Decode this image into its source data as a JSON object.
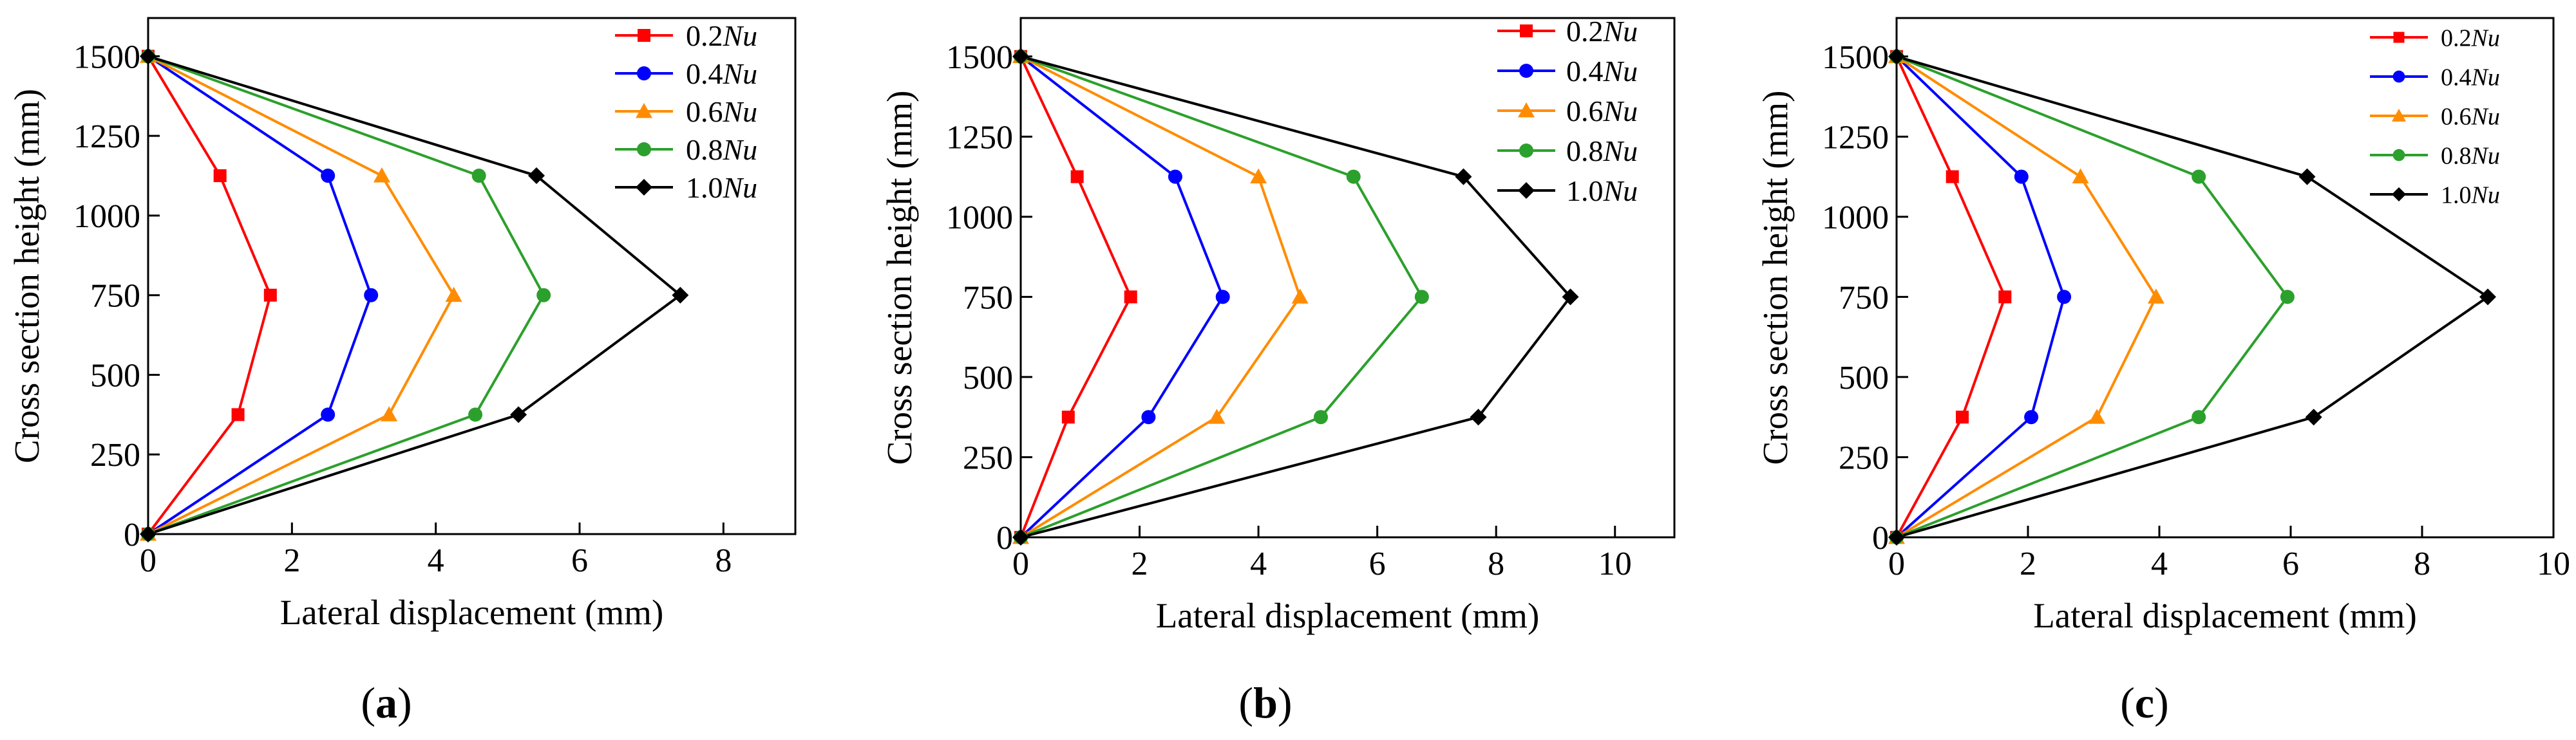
{
  "chart_data": [
    {
      "type": "line",
      "panel": "a",
      "panel_label": {
        "open": "(",
        "letter": "a",
        "close": ")"
      },
      "xlabel": "Lateral displacement (mm)",
      "ylabel": "Cross section height (mm)",
      "xlim": [
        0,
        9
      ],
      "ylim": [
        0,
        1620
      ],
      "xticks": [
        0,
        2,
        4,
        6,
        8
      ],
      "yticks": [
        0,
        250,
        500,
        750,
        1000,
        1250,
        1500
      ],
      "legend_position": "top-right",
      "series": [
        {
          "name_value": "0.2",
          "name_unit": "Nu",
          "color": "#ff0000",
          "marker": "square",
          "x": [
            0,
            1.25,
            1.7,
            1.0,
            0
          ],
          "y": [
            0,
            375,
            750,
            1125,
            1500
          ]
        },
        {
          "name_value": "0.4",
          "name_unit": "Nu",
          "color": "#0000ff",
          "marker": "circle",
          "x": [
            0,
            2.5,
            3.1,
            2.5,
            0
          ],
          "y": [
            0,
            375,
            750,
            1125,
            1500
          ]
        },
        {
          "name_value": "0.6",
          "name_unit": "Nu",
          "color": "#ff8c00",
          "marker": "triangle",
          "x": [
            0,
            3.35,
            4.25,
            3.25,
            0
          ],
          "y": [
            0,
            375,
            750,
            1125,
            1500
          ]
        },
        {
          "name_value": "0.8",
          "name_unit": "Nu",
          "color": "#2ca02c",
          "marker": "circle",
          "x": [
            0,
            4.55,
            5.5,
            4.6,
            0
          ],
          "y": [
            0,
            375,
            750,
            1125,
            1500
          ]
        },
        {
          "name_value": "1.0",
          "name_unit": "Nu",
          "color": "#000000",
          "marker": "diamond",
          "x": [
            0,
            5.15,
            7.4,
            5.4,
            0
          ],
          "y": [
            0,
            375,
            750,
            1125,
            1500
          ]
        }
      ]
    },
    {
      "type": "line",
      "panel": "b",
      "panel_label": {
        "open": "(",
        "letter": "b",
        "close": ")"
      },
      "xlabel": "Lateral displacement (mm)",
      "ylabel": "Cross section height (mm)",
      "xlim": [
        0,
        11
      ],
      "ylim": [
        0,
        1620
      ],
      "xticks": [
        0,
        2,
        4,
        6,
        8,
        10
      ],
      "yticks": [
        0,
        250,
        500,
        750,
        1000,
        1250,
        1500
      ],
      "legend_position": "top-right",
      "series": [
        {
          "name_value": "0.2",
          "name_unit": "Nu",
          "color": "#ff0000",
          "marker": "square",
          "x": [
            0,
            0.8,
            1.85,
            0.95,
            0
          ],
          "y": [
            0,
            375,
            750,
            1125,
            1500
          ]
        },
        {
          "name_value": "0.4",
          "name_unit": "Nu",
          "color": "#0000ff",
          "marker": "circle",
          "x": [
            0,
            2.15,
            3.4,
            2.6,
            0
          ],
          "y": [
            0,
            375,
            750,
            1125,
            1500
          ]
        },
        {
          "name_value": "0.6",
          "name_unit": "Nu",
          "color": "#ff8c00",
          "marker": "triangle",
          "x": [
            0,
            3.3,
            4.7,
            4.0,
            0
          ],
          "y": [
            0,
            375,
            750,
            1125,
            1500
          ]
        },
        {
          "name_value": "0.8",
          "name_unit": "Nu",
          "color": "#2ca02c",
          "marker": "circle",
          "x": [
            0,
            5.05,
            6.75,
            5.6,
            0
          ],
          "y": [
            0,
            375,
            750,
            1125,
            1500
          ]
        },
        {
          "name_value": "1.0",
          "name_unit": "Nu",
          "color": "#000000",
          "marker": "diamond",
          "x": [
            0,
            7.7,
            9.25,
            7.45,
            0
          ],
          "y": [
            0,
            375,
            750,
            1125,
            1500
          ]
        }
      ]
    },
    {
      "type": "line",
      "panel": "c",
      "panel_label": {
        "open": "(",
        "letter": "c",
        "close": ")"
      },
      "xlabel": "Lateral displacement (mm)",
      "ylabel": "Cross section height (mm)",
      "xlim": [
        0,
        10
      ],
      "ylim": [
        0,
        1620
      ],
      "xticks": [
        0,
        2,
        4,
        6,
        8,
        10
      ],
      "yticks": [
        0,
        250,
        500,
        750,
        1000,
        1250,
        1500
      ],
      "legend_position": "top-right",
      "series": [
        {
          "name_value": "0.2",
          "name_unit": "Nu",
          "color": "#ff0000",
          "marker": "square",
          "x": [
            0,
            1.0,
            1.65,
            0.85,
            0
          ],
          "y": [
            0,
            375,
            750,
            1125,
            1500
          ]
        },
        {
          "name_value": "0.4",
          "name_unit": "Nu",
          "color": "#0000ff",
          "marker": "circle",
          "x": [
            0,
            2.05,
            2.55,
            1.9,
            0
          ],
          "y": [
            0,
            375,
            750,
            1125,
            1500
          ]
        },
        {
          "name_value": "0.6",
          "name_unit": "Nu",
          "color": "#ff8c00",
          "marker": "triangle",
          "x": [
            0,
            3.05,
            3.95,
            2.8,
            0
          ],
          "y": [
            0,
            375,
            750,
            1125,
            1500
          ]
        },
        {
          "name_value": "0.8",
          "name_unit": "Nu",
          "color": "#2ca02c",
          "marker": "circle",
          "x": [
            0,
            4.6,
            5.95,
            4.6,
            0
          ],
          "y": [
            0,
            375,
            750,
            1125,
            1500
          ]
        },
        {
          "name_value": "1.0",
          "name_unit": "Nu",
          "color": "#000000",
          "marker": "diamond",
          "x": [
            0,
            6.35,
            9.0,
            6.25,
            0
          ],
          "y": [
            0,
            375,
            750,
            1125,
            1500
          ]
        }
      ]
    }
  ]
}
